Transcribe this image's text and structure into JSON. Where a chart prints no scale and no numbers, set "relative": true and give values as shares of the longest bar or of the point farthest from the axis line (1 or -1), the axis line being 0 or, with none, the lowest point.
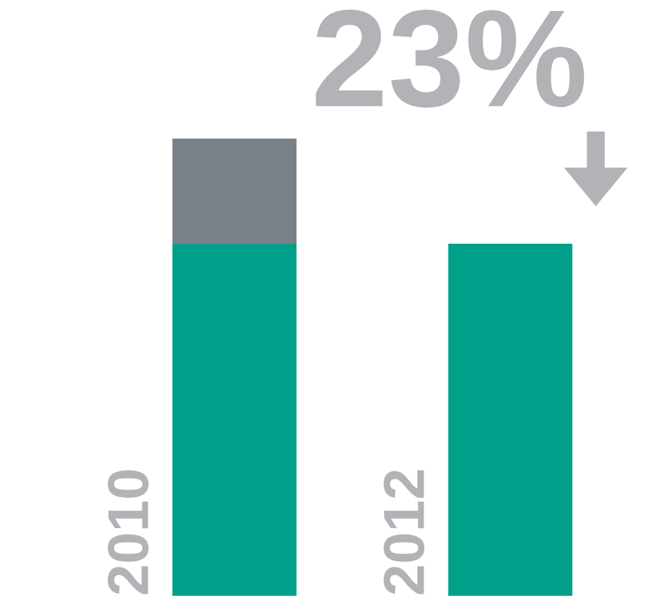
{
  "chart_data": {
    "type": "bar",
    "relative": true,
    "stacked": true,
    "categories": [
      "2010",
      "2012"
    ],
    "series": [
      {
        "color": "#00a08a",
        "values": [
          0.77,
          0.77
        ]
      },
      {
        "color": "#7a8088",
        "values": [
          0.23,
          null
        ]
      }
    ],
    "annotations": [
      "23%"
    ]
  }
}
